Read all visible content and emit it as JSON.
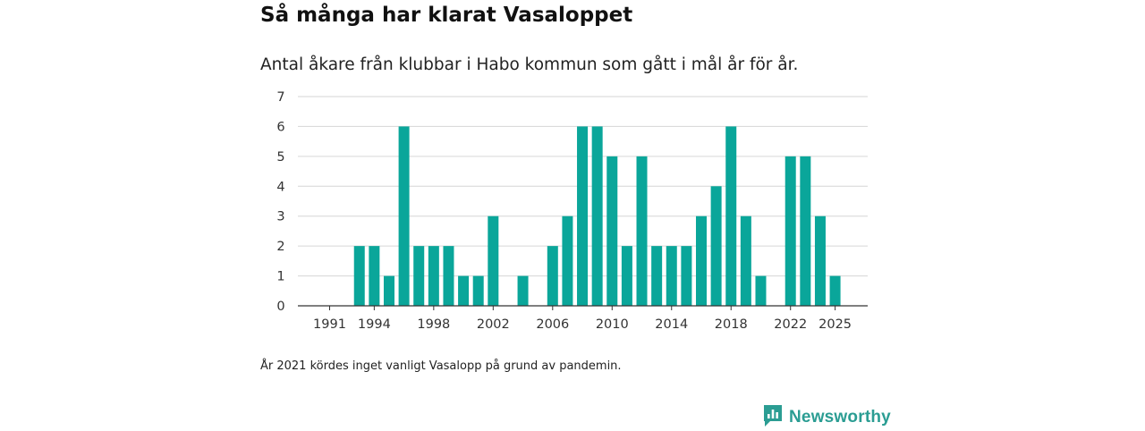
{
  "title": "Så många har klarat Vasaloppet",
  "subtitle": "Antal åkare från klubbar i Habo kommun som gått i mål år för år.",
  "note": "År 2021 kördes inget vanligt Vasalopp på grund av pandemin.",
  "brand": {
    "name": "Newsworthy",
    "icon": "newsworthy-logo-icon",
    "color": "#2b9d93"
  },
  "chart_data": {
    "type": "bar",
    "title": "Så många har klarat Vasaloppet",
    "xlabel": "",
    "ylabel": "",
    "ylim": [
      0,
      7
    ],
    "yticks": [
      0,
      1,
      2,
      3,
      4,
      5,
      6,
      7
    ],
    "xticks": [
      1991,
      1994,
      1998,
      2002,
      2006,
      2010,
      2014,
      2018,
      2022,
      2025
    ],
    "grid": true,
    "bar_color": "#0aa69a",
    "categories": [
      1991,
      1992,
      1993,
      1994,
      1995,
      1996,
      1997,
      1998,
      1999,
      2000,
      2001,
      2002,
      2003,
      2004,
      2005,
      2006,
      2007,
      2008,
      2009,
      2010,
      2011,
      2012,
      2013,
      2014,
      2015,
      2016,
      2017,
      2018,
      2019,
      2020,
      2021,
      2022,
      2023,
      2024,
      2025
    ],
    "values": [
      0,
      0,
      2,
      2,
      1,
      6,
      2,
      2,
      2,
      1,
      1,
      3,
      0,
      1,
      0,
      2,
      3,
      6,
      6,
      5,
      2,
      5,
      2,
      2,
      2,
      3,
      4,
      6,
      3,
      1,
      0,
      5,
      5,
      3,
      1
    ]
  }
}
